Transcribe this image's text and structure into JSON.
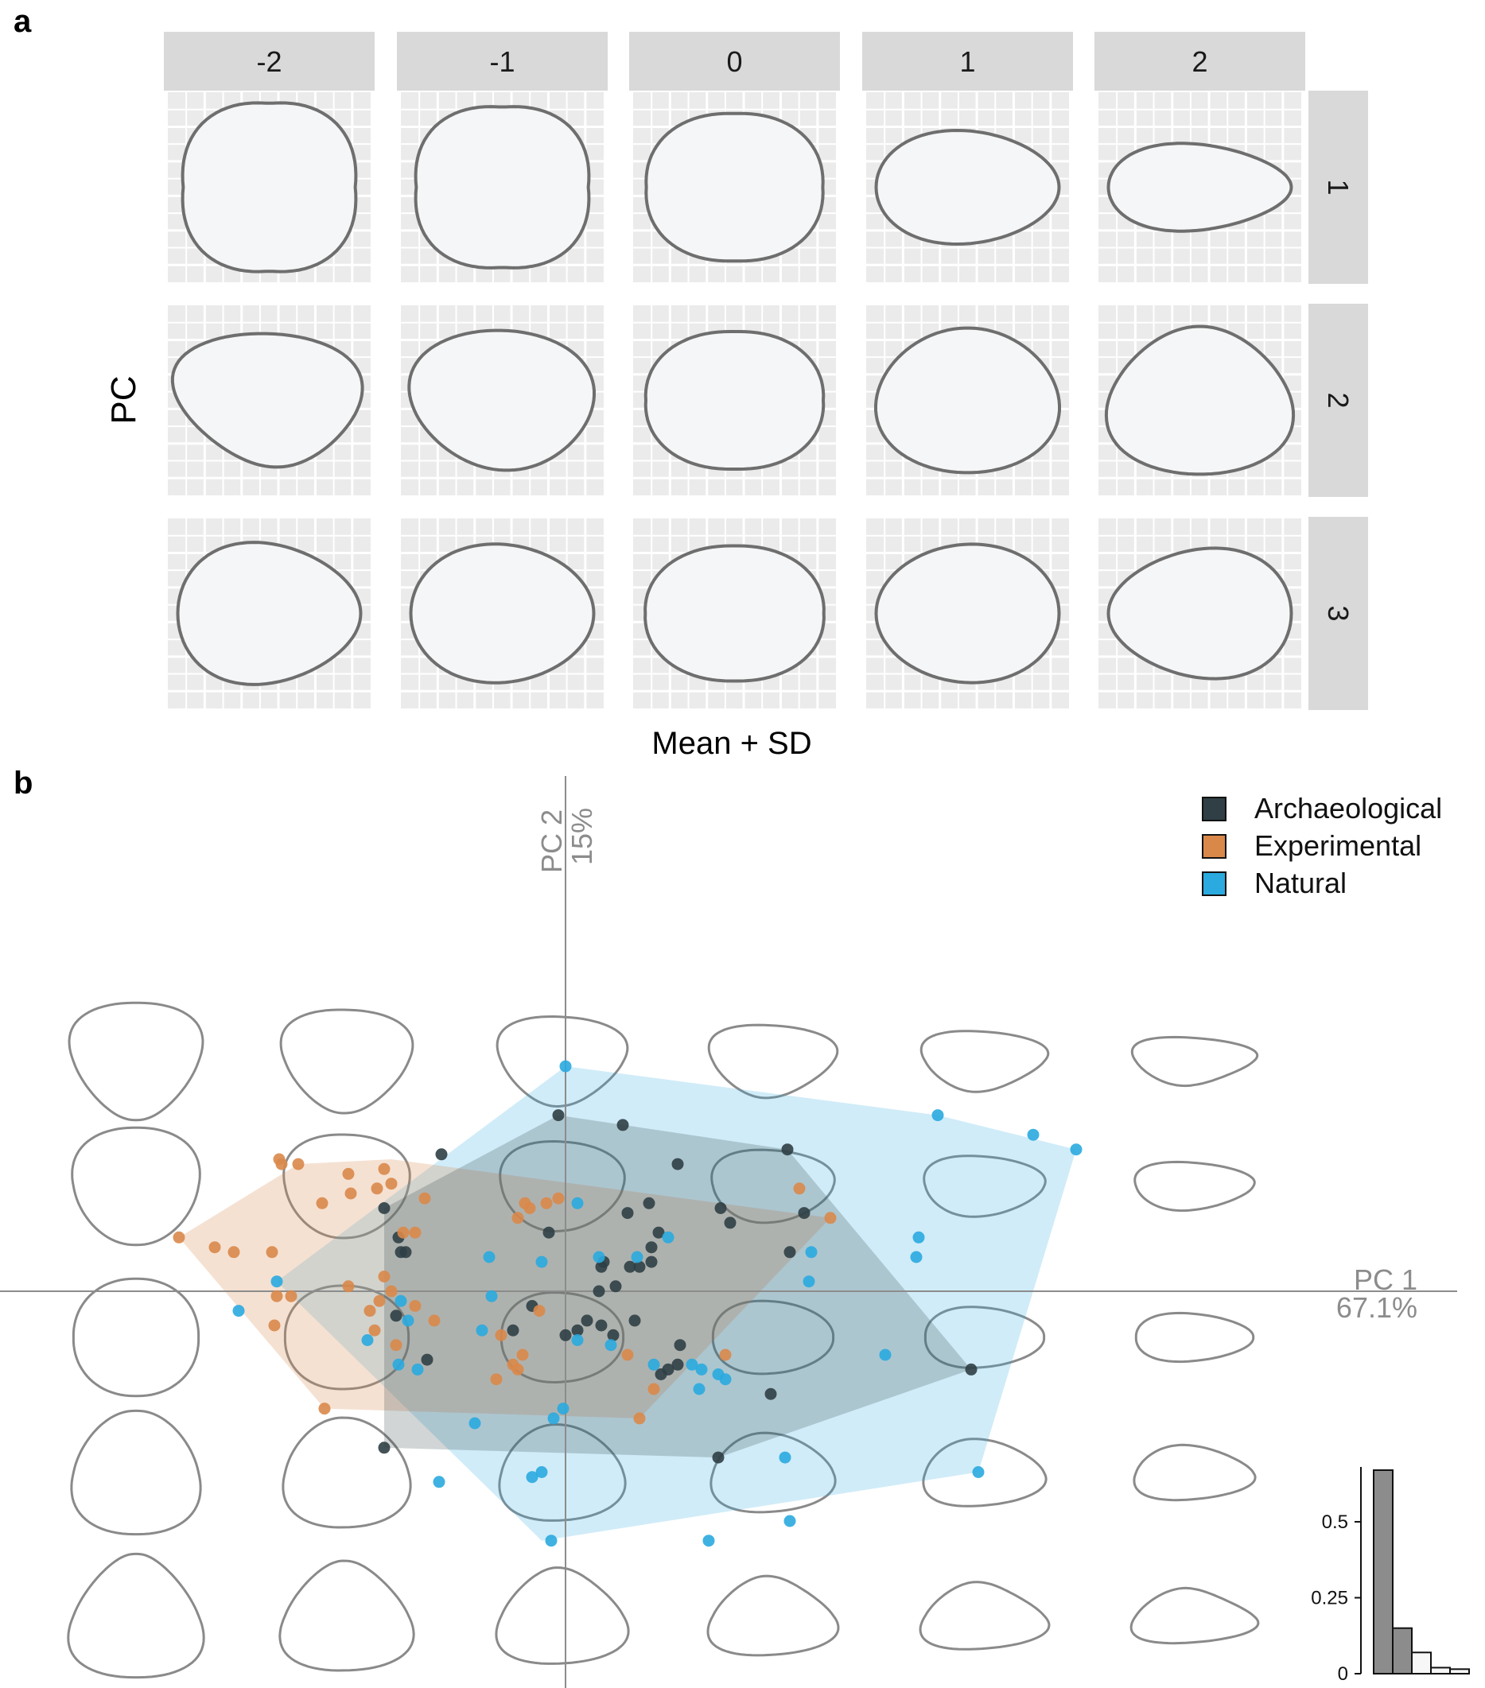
{
  "panels": {
    "a": {
      "label": "a"
    },
    "b": {
      "label": "b"
    }
  },
  "colors": {
    "strip_bg": "#d9d9d9",
    "panel_bg": "#ebebeb",
    "grid": "#ffffff",
    "outline": "#6e6e6e",
    "fill": "#f5f6f7",
    "archaeological": "#2f3f45",
    "experimental": "#d9884a",
    "natural": "#2aaadf",
    "axis": "#8c8c8c"
  },
  "chart_data": [
    {
      "type": "other",
      "panel": "a",
      "column_values": [
        "-2",
        "-1",
        "0",
        "1",
        "2"
      ],
      "row_values": [
        "1",
        "2",
        "3"
      ],
      "xlabel": "Mean + SD",
      "ylabel": "PC"
    },
    {
      "type": "scatter",
      "panel": "b",
      "xlabel": "PC 1",
      "xlabel_pct": "67.1%",
      "ylabel": "PC 2",
      "ylabel_pct": "15%",
      "legend_position": "top-right",
      "series": [
        {
          "name": "Archaeological",
          "color": "#2f3f45",
          "points": [
            [
              -0.03,
              0.36
            ],
            [
              0.24,
              0.34
            ],
            [
              0.93,
              0.29
            ],
            [
              -0.52,
              0.28
            ],
            [
              0.47,
              0.26
            ],
            [
              0.35,
              0.18
            ],
            [
              0.65,
              0.17
            ],
            [
              1.0,
              0.16
            ],
            [
              0.26,
              0.16
            ],
            [
              -0.76,
              0.17
            ],
            [
              0.69,
              0.14
            ],
            [
              0.39,
              0.12
            ],
            [
              -0.07,
              0.12
            ],
            [
              -0.7,
              0.11
            ],
            [
              0.36,
              0.09
            ],
            [
              -0.67,
              0.08
            ],
            [
              -0.69,
              0.08
            ],
            [
              0.94,
              0.08
            ],
            [
              0.36,
              0.06
            ],
            [
              0.16,
              0.06
            ],
            [
              0.15,
              0.05
            ],
            [
              0.27,
              0.05
            ],
            [
              0.31,
              0.05
            ],
            [
              0.21,
              0.01
            ],
            [
              -0.14,
              -0.03
            ],
            [
              0.14,
              0.0
            ],
            [
              -0.71,
              -0.05
            ],
            [
              0.09,
              -0.06
            ],
            [
              0.29,
              -0.06
            ],
            [
              0.15,
              -0.07
            ],
            [
              0.05,
              -0.08
            ],
            [
              0.2,
              -0.09
            ],
            [
              -0.22,
              -0.08
            ],
            [
              0.48,
              -0.11
            ],
            [
              0.0,
              -0.09
            ],
            [
              -0.58,
              -0.14
            ],
            [
              0.47,
              -0.15
            ],
            [
              0.43,
              -0.16
            ],
            [
              0.4,
              -0.17
            ],
            [
              1.7,
              -0.16
            ],
            [
              0.86,
              -0.21
            ],
            [
              -0.76,
              -0.32
            ],
            [
              0.64,
              -0.34
            ]
          ]
        },
        {
          "name": "Experimental",
          "color": "#d9884a",
          "points": [
            [
              -1.2,
              0.27
            ],
            [
              -1.19,
              0.26
            ],
            [
              -1.12,
              0.26
            ],
            [
              -0.91,
              0.24
            ],
            [
              -0.76,
              0.25
            ],
            [
              -0.73,
              0.22
            ],
            [
              -0.79,
              0.21
            ],
            [
              -0.9,
              0.2
            ],
            [
              -0.59,
              0.19
            ],
            [
              -1.02,
              0.18
            ],
            [
              -0.03,
              0.19
            ],
            [
              -0.17,
              0.18
            ],
            [
              -0.08,
              0.18
            ],
            [
              -0.15,
              0.17
            ],
            [
              -0.2,
              0.15
            ],
            [
              -0.63,
              0.12
            ],
            [
              -0.68,
              0.12
            ],
            [
              -1.62,
              0.11
            ],
            [
              -1.47,
              0.09
            ],
            [
              -1.39,
              0.08
            ],
            [
              -1.23,
              0.08
            ],
            [
              -0.76,
              0.03
            ],
            [
              -0.91,
              0.01
            ],
            [
              -0.73,
              0.0
            ],
            [
              -1.21,
              -0.01
            ],
            [
              -1.15,
              -0.01
            ],
            [
              -0.78,
              -0.02
            ],
            [
              -0.63,
              -0.03
            ],
            [
              -0.82,
              -0.04
            ],
            [
              -0.55,
              -0.06
            ],
            [
              -1.22,
              -0.07
            ],
            [
              -0.8,
              -0.08
            ],
            [
              -0.71,
              -0.11
            ],
            [
              -0.11,
              -0.04
            ],
            [
              -0.27,
              -0.09
            ],
            [
              -0.18,
              -0.13
            ],
            [
              -0.22,
              -0.15
            ],
            [
              -0.2,
              -0.16
            ],
            [
              -0.29,
              -0.18
            ],
            [
              0.26,
              -0.13
            ],
            [
              0.67,
              -0.13
            ],
            [
              0.37,
              -0.2
            ],
            [
              -1.01,
              -0.24
            ],
            [
              0.31,
              -0.26
            ],
            [
              0.98,
              0.21
            ],
            [
              1.11,
              0.15
            ]
          ]
        },
        {
          "name": "Natural",
          "color": "#2aaadf",
          "points": [
            [
              0.0,
              0.46
            ],
            [
              1.56,
              0.36
            ],
            [
              1.96,
              0.32
            ],
            [
              2.14,
              0.29
            ],
            [
              0.05,
              0.18
            ],
            [
              0.43,
              0.11
            ],
            [
              0.14,
              0.07
            ],
            [
              1.48,
              0.11
            ],
            [
              -0.32,
              0.07
            ],
            [
              -0.1,
              0.06
            ],
            [
              0.3,
              0.07
            ],
            [
              1.03,
              0.08
            ],
            [
              1.47,
              0.07
            ],
            [
              1.02,
              0.02
            ],
            [
              -1.21,
              0.02
            ],
            [
              -0.31,
              -0.01
            ],
            [
              -0.69,
              -0.02
            ],
            [
              -1.37,
              -0.04
            ],
            [
              -0.66,
              -0.06
            ],
            [
              -0.83,
              -0.1
            ],
            [
              -0.35,
              -0.08
            ],
            [
              0.05,
              -0.1
            ],
            [
              0.19,
              -0.11
            ],
            [
              0.37,
              -0.15
            ],
            [
              -0.7,
              -0.15
            ],
            [
              0.53,
              -0.15
            ],
            [
              0.57,
              -0.16
            ],
            [
              -0.62,
              -0.16
            ],
            [
              1.34,
              -0.13
            ],
            [
              0.64,
              -0.17
            ],
            [
              0.67,
              -0.18
            ],
            [
              0.56,
              -0.2
            ],
            [
              -0.01,
              -0.24
            ],
            [
              -0.05,
              -0.26
            ],
            [
              -0.38,
              -0.27
            ],
            [
              0.92,
              -0.34
            ],
            [
              1.73,
              -0.37
            ],
            [
              -0.1,
              -0.37
            ],
            [
              -0.14,
              -0.38
            ],
            [
              -0.53,
              -0.39
            ],
            [
              -0.06,
              -0.51
            ],
            [
              0.6,
              -0.51
            ],
            [
              0.94,
              -0.47
            ]
          ]
        }
      ],
      "hulls": {
        "Archaeological": [
          [
            -0.03,
            0.36
          ],
          [
            0.93,
            0.29
          ],
          [
            1.7,
            -0.16
          ],
          [
            0.64,
            -0.34
          ],
          [
            -0.76,
            -0.32
          ],
          [
            -0.76,
            0.17
          ]
        ],
        "Experimental": [
          [
            -1.12,
            0.26
          ],
          [
            -0.73,
            0.27
          ],
          [
            1.11,
            0.15
          ],
          [
            0.31,
            -0.26
          ],
          [
            -1.01,
            -0.24
          ],
          [
            -1.62,
            0.11
          ]
        ],
        "Natural": [
          [
            0.0,
            0.46
          ],
          [
            1.56,
            0.36
          ],
          [
            2.14,
            0.29
          ],
          [
            1.73,
            -0.37
          ],
          [
            -0.1,
            -0.51
          ],
          [
            -1.21,
            0.02
          ]
        ]
      },
      "inset_histogram": {
        "type": "bar",
        "values": [
          0.67,
          0.15,
          0.07,
          0.02,
          0.015
        ],
        "yticks": [
          "0",
          "0.25",
          "0.5"
        ],
        "ylim": [
          0,
          0.7
        ]
      }
    }
  ]
}
